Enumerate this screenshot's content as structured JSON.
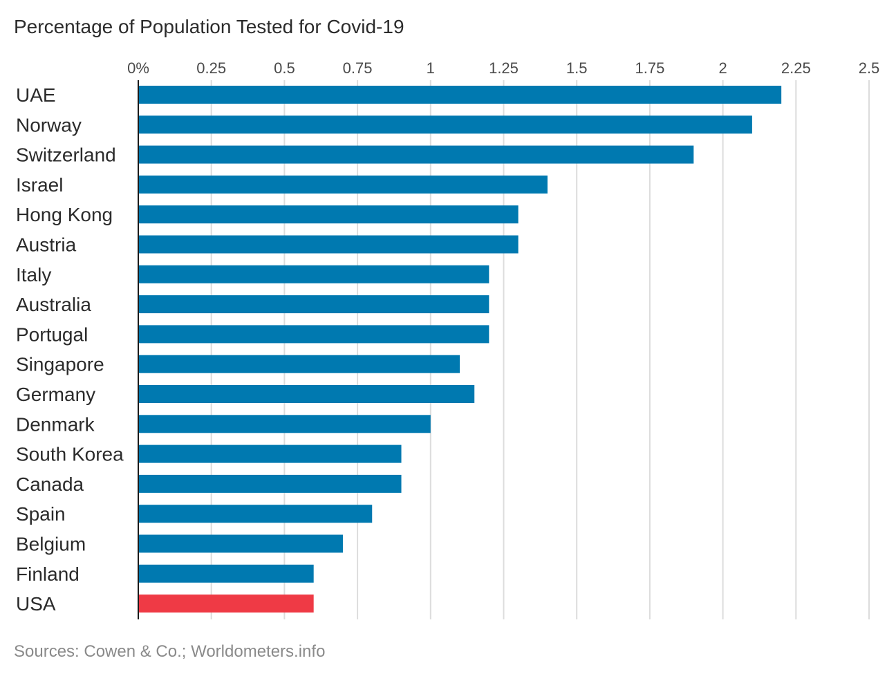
{
  "chart_data": {
    "type": "bar",
    "orientation": "horizontal",
    "title": "Percentage of Population Tested for Covid-19",
    "source": "Sources: Cowen & Co.; Worldometers.info",
    "xlim": [
      0,
      2.5
    ],
    "x_ticks": [
      0,
      0.25,
      0.5,
      0.75,
      1,
      1.25,
      1.5,
      1.75,
      2,
      2.25,
      2.5
    ],
    "x_tick_labels": [
      "0%",
      "0.25",
      "0.5",
      "0.75",
      "1",
      "1.25",
      "1.5",
      "1.75",
      "2",
      "2.25",
      "2.5"
    ],
    "grid": true,
    "categories": [
      "UAE",
      "Norway",
      "Switzerland",
      "Israel",
      "Hong Kong",
      "Austria",
      "Italy",
      "Australia",
      "Portugal",
      "Singapore",
      "Germany",
      "Denmark",
      "South Korea",
      "Canada",
      "Spain",
      "Belgium",
      "Finland",
      "USA"
    ],
    "values": [
      2.2,
      2.1,
      1.9,
      1.4,
      1.3,
      1.3,
      1.2,
      1.2,
      1.2,
      1.1,
      1.15,
      1.0,
      0.9,
      0.9,
      0.8,
      0.7,
      0.6,
      0.6
    ],
    "bar_colors": [
      "#0079b0",
      "#0079b0",
      "#0079b0",
      "#0079b0",
      "#0079b0",
      "#0079b0",
      "#0079b0",
      "#0079b0",
      "#0079b0",
      "#0079b0",
      "#0079b0",
      "#0079b0",
      "#0079b0",
      "#0079b0",
      "#0079b0",
      "#0079b0",
      "#0079b0",
      "#ef3a45"
    ],
    "colors": {
      "default_bar": "#0079b0",
      "highlight_bar": "#ef3a45"
    }
  }
}
